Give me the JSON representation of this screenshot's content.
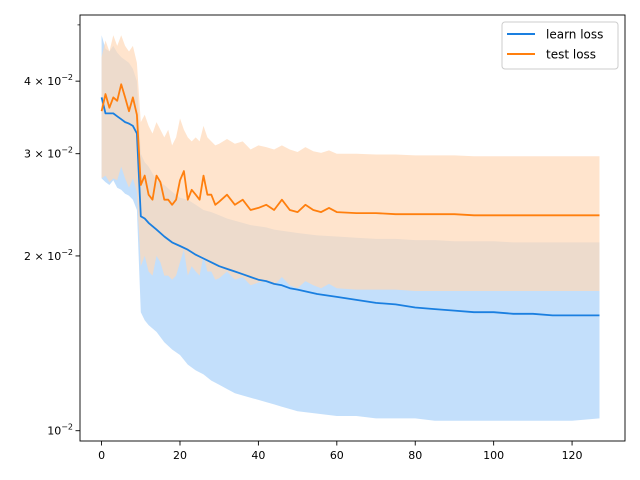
{
  "chart_data": {
    "type": "line",
    "title": "",
    "xlabel": "",
    "ylabel": "",
    "yscale": "log",
    "xlim": [
      -5.5,
      133.5
    ],
    "ylim": [
      0.0096,
      0.052
    ],
    "grid": false,
    "legend_position": "top-right",
    "x_ticks": [
      0,
      20,
      40,
      60,
      80,
      100,
      120
    ],
    "y_ticks": [
      {
        "value": 0.01,
        "base": "10",
        "exp": "−2",
        "coef": ""
      },
      {
        "value": 0.02,
        "base": "10",
        "exp": "−2",
        "coef": "2 × "
      },
      {
        "value": 0.03,
        "base": "10",
        "exp": "−2",
        "coef": "3 × "
      },
      {
        "value": 0.04,
        "base": "10",
        "exp": "−2",
        "coef": "4 × "
      }
    ],
    "series": [
      {
        "name": "learn loss",
        "color": "#1f77b4",
        "line_color": "#1a7fe0",
        "band_color": "#a9d1fa",
        "x": [
          0,
          1,
          2,
          3,
          4,
          5,
          6,
          7,
          8,
          9,
          10,
          11,
          12,
          14,
          16,
          18,
          20,
          22,
          24,
          26,
          28,
          30,
          32,
          34,
          36,
          38,
          40,
          42,
          44,
          46,
          48,
          50,
          55,
          60,
          65,
          70,
          75,
          80,
          85,
          90,
          95,
          100,
          105,
          110,
          115,
          120,
          127
        ],
        "values": [
          0.0375,
          0.0352,
          0.0352,
          0.0352,
          0.0348,
          0.0344,
          0.034,
          0.0338,
          0.0335,
          0.0325,
          0.0234,
          0.0232,
          0.0228,
          0.0222,
          0.0216,
          0.0211,
          0.0208,
          0.0205,
          0.0201,
          0.0198,
          0.0195,
          0.0192,
          0.019,
          0.0188,
          0.0186,
          0.0184,
          0.0182,
          0.0181,
          0.0179,
          0.0178,
          0.0176,
          0.0175,
          0.0172,
          0.017,
          0.0168,
          0.0166,
          0.0165,
          0.0163,
          0.0162,
          0.0161,
          0.016,
          0.016,
          0.0159,
          0.0159,
          0.0158,
          0.0158,
          0.0158
        ],
        "upper": [
          0.048,
          0.0455,
          0.045,
          0.046,
          0.0448,
          0.044,
          0.0435,
          0.043,
          0.042,
          0.04,
          0.03,
          0.029,
          0.0285,
          0.027,
          0.0265,
          0.0258,
          0.0252,
          0.025,
          0.0245,
          0.024,
          0.0238,
          0.0235,
          0.0232,
          0.023,
          0.0228,
          0.0226,
          0.0225,
          0.0224,
          0.0222,
          0.0221,
          0.022,
          0.0219,
          0.0217,
          0.0216,
          0.0215,
          0.0214,
          0.0214,
          0.0213,
          0.0213,
          0.0212,
          0.0212,
          0.0212,
          0.0211,
          0.0211,
          0.0211,
          0.0211,
          0.0211
        ],
        "lower": [
          0.0272,
          0.0268,
          0.0265,
          0.027,
          0.0262,
          0.026,
          0.0256,
          0.0254,
          0.025,
          0.024,
          0.016,
          0.0155,
          0.0152,
          0.0148,
          0.0142,
          0.0138,
          0.0135,
          0.013,
          0.0127,
          0.0125,
          0.0122,
          0.012,
          0.0118,
          0.0116,
          0.0115,
          0.0114,
          0.0113,
          0.0112,
          0.0111,
          0.011,
          0.0109,
          0.0108,
          0.0107,
          0.0106,
          0.0106,
          0.0105,
          0.0105,
          0.0105,
          0.0104,
          0.0104,
          0.0104,
          0.0104,
          0.0104,
          0.0104,
          0.0104,
          0.0104,
          0.0105
        ]
      },
      {
        "name": "test loss",
        "color": "#ff7f0e",
        "line_color": "#ff7f0e",
        "band_color": "#ffd9b8",
        "x": [
          0,
          1,
          2,
          3,
          4,
          5,
          6,
          7,
          8,
          9,
          10,
          11,
          12,
          13,
          14,
          15,
          16,
          17,
          18,
          19,
          20,
          21,
          22,
          23,
          24,
          25,
          26,
          27,
          28,
          29,
          30,
          32,
          34,
          36,
          38,
          40,
          42,
          44,
          46,
          48,
          50,
          52,
          54,
          56,
          58,
          60,
          65,
          70,
          75,
          80,
          85,
          90,
          95,
          100,
          105,
          110,
          115,
          120,
          125,
          127
        ],
        "values": [
          0.0355,
          0.038,
          0.036,
          0.0375,
          0.037,
          0.0395,
          0.0375,
          0.0355,
          0.0375,
          0.035,
          0.0265,
          0.0275,
          0.0255,
          0.025,
          0.0275,
          0.0268,
          0.025,
          0.025,
          0.0245,
          0.025,
          0.027,
          0.028,
          0.025,
          0.026,
          0.0255,
          0.025,
          0.0275,
          0.0255,
          0.0255,
          0.0245,
          0.0248,
          0.0255,
          0.0245,
          0.025,
          0.024,
          0.0242,
          0.0245,
          0.024,
          0.025,
          0.024,
          0.0238,
          0.0245,
          0.024,
          0.0238,
          0.0242,
          0.0238,
          0.0237,
          0.0237,
          0.0236,
          0.0236,
          0.0236,
          0.0236,
          0.0235,
          0.0235,
          0.0235,
          0.0235,
          0.0235,
          0.0235,
          0.0235,
          0.0235
        ],
        "upper": [
          0.044,
          0.047,
          0.045,
          0.048,
          0.046,
          0.048,
          0.046,
          0.045,
          0.046,
          0.043,
          0.034,
          0.035,
          0.0335,
          0.0325,
          0.034,
          0.033,
          0.032,
          0.033,
          0.031,
          0.032,
          0.0345,
          0.033,
          0.032,
          0.0315,
          0.032,
          0.0315,
          0.0335,
          0.032,
          0.0315,
          0.031,
          0.0312,
          0.0318,
          0.0312,
          0.0315,
          0.0305,
          0.031,
          0.0308,
          0.0305,
          0.031,
          0.0305,
          0.0302,
          0.0308,
          0.0303,
          0.0301,
          0.0304,
          0.03,
          0.03,
          0.0299,
          0.0299,
          0.0298,
          0.0298,
          0.0298,
          0.0297,
          0.0297,
          0.0297,
          0.0297,
          0.0297,
          0.0297,
          0.0297,
          0.0297
        ],
        "lower": [
          0.0272,
          0.0275,
          0.0268,
          0.0272,
          0.027,
          0.0285,
          0.0272,
          0.0262,
          0.0272,
          0.0258,
          0.0192,
          0.02,
          0.0188,
          0.0185,
          0.02,
          0.0195,
          0.0185,
          0.0185,
          0.0182,
          0.0185,
          0.0195,
          0.0205,
          0.0185,
          0.0192,
          0.0188,
          0.0185,
          0.02,
          0.0188,
          0.0188,
          0.0182,
          0.0183,
          0.0188,
          0.0182,
          0.0184,
          0.0178,
          0.018,
          0.0181,
          0.0178,
          0.0184,
          0.0178,
          0.0176,
          0.0181,
          0.0178,
          0.0176,
          0.0179,
          0.0176,
          0.0175,
          0.0175,
          0.0175,
          0.0174,
          0.0174,
          0.0174,
          0.0174,
          0.0174,
          0.0174,
          0.0174,
          0.0174,
          0.0174,
          0.0174,
          0.0174
        ]
      }
    ]
  }
}
